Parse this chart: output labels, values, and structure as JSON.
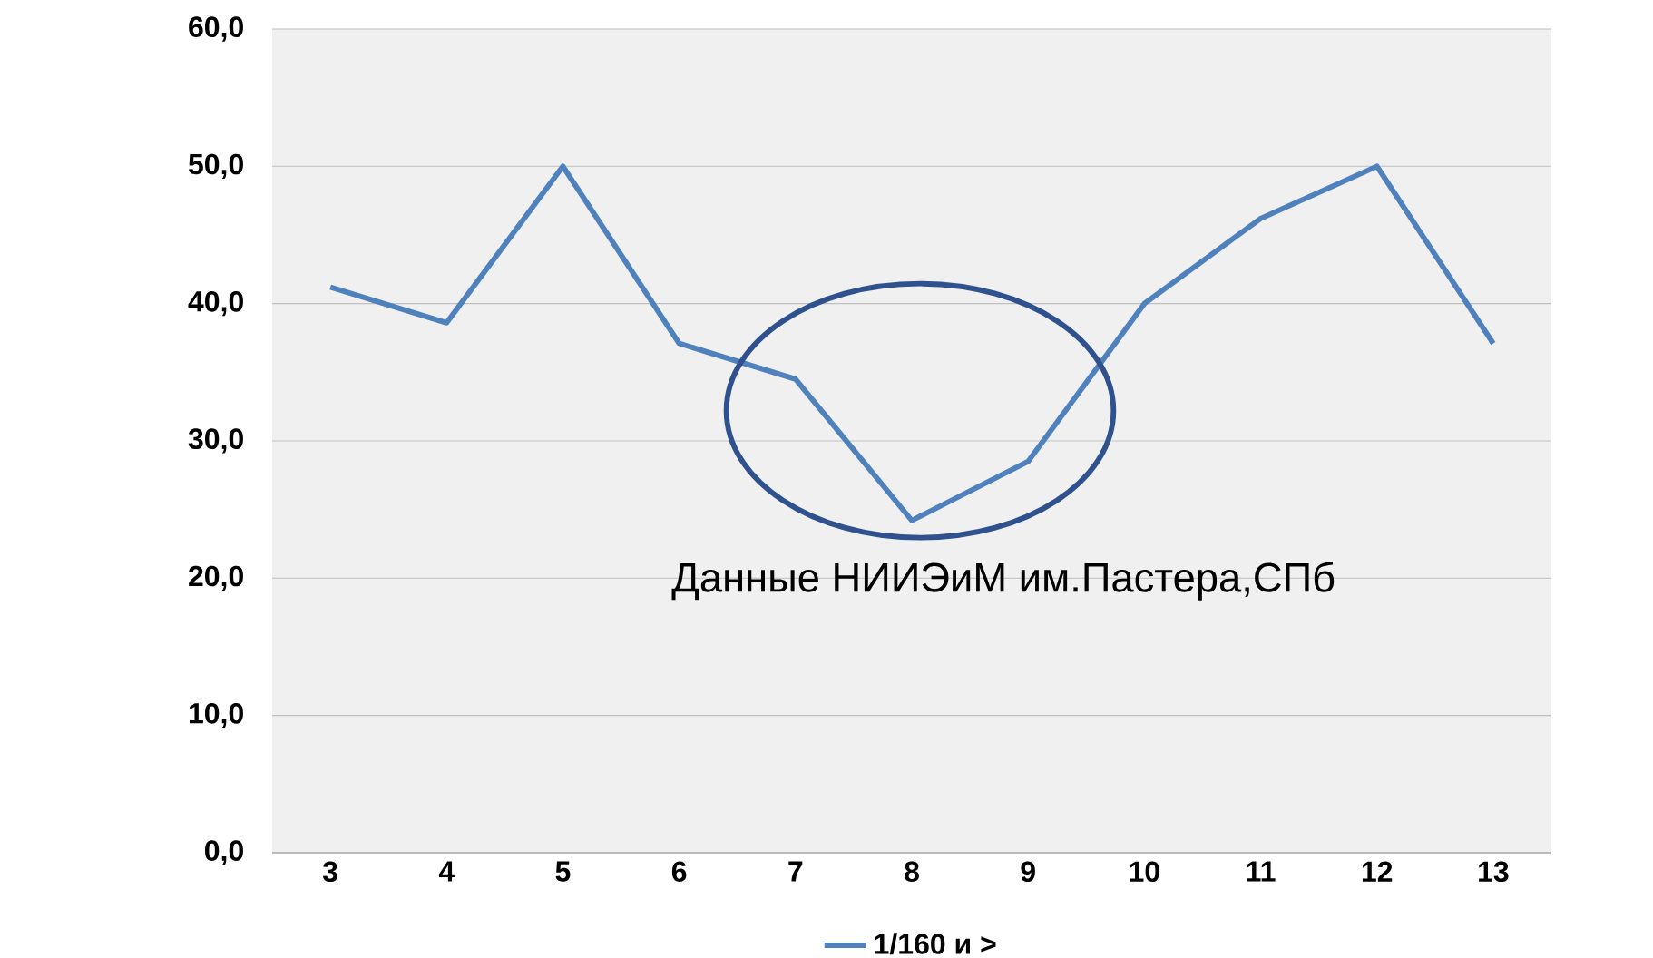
{
  "chart_data": {
    "type": "line",
    "categories": [
      "3",
      "4",
      "5",
      "6",
      "7",
      "8",
      "9",
      "10",
      "11",
      "12",
      "13"
    ],
    "series": [
      {
        "name": "1/160 и >",
        "color": "#4f81bd",
        "values": [
          41.2,
          38.6,
          50.0,
          37.1,
          34.5,
          24.2,
          28.5,
          40.0,
          46.2,
          50.0,
          37.1
        ]
      }
    ],
    "ylim": [
      0,
      60
    ],
    "yticks": [
      {
        "value": 0,
        "label": "0,0"
      },
      {
        "value": 10,
        "label": "10,0"
      },
      {
        "value": 20,
        "label": "20,0"
      },
      {
        "value": 30,
        "label": "30,0"
      },
      {
        "value": 40,
        "label": "40,0"
      },
      {
        "value": 50,
        "label": "50,0"
      },
      {
        "value": 60,
        "label": "60,0"
      }
    ],
    "annotations": [
      "Данные НИИЭиМ им.Пастера,СПб"
    ],
    "grid": "y",
    "legend": "bottom",
    "marker": "none",
    "line_style": "solid"
  }
}
